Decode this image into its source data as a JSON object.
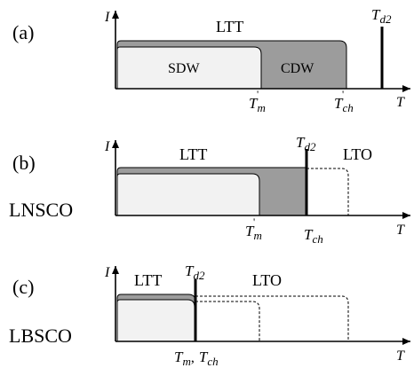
{
  "panels": [
    {
      "label": "(a)",
      "sample": "",
      "axis_y": "I",
      "axis_x": "T",
      "top_phase": "LTT",
      "inner_left": "SDW",
      "inner_right": "CDW",
      "right_phase": "",
      "td2": {
        "main": "T",
        "sub": "d2"
      },
      "ticks": [
        {
          "main": "T",
          "sub": "m",
          "prime": true
        },
        {
          "main": "T",
          "sub": "ch",
          "prime": true
        }
      ]
    },
    {
      "label": "(b)",
      "sample": "LNSCO",
      "axis_y": "I",
      "axis_x": "T",
      "top_phase": "LTT",
      "right_phase": "LTO",
      "td2": {
        "main": "T",
        "sub": "d2"
      },
      "ticks": [
        {
          "main": "T",
          "sub": "m",
          "prime": true
        },
        {
          "main": "T",
          "sub": "ch",
          "prime": false
        }
      ]
    },
    {
      "label": "(c)",
      "sample": "LBSCO",
      "axis_y": "I",
      "axis_x": "T",
      "top_phase": "LTT",
      "right_phase": "LTO",
      "td2": {
        "main": "T",
        "sub": "d2"
      },
      "ticks": [
        {
          "main": "T",
          "sub": "m",
          "prime": false
        },
        {
          "main": "T",
          "sub": "ch",
          "prime": false
        }
      ],
      "tick_separator": ","
    }
  ],
  "colors": {
    "light_fill": "#f2f2f2",
    "dark_fill": "#9c9c9c",
    "line": "#000000"
  }
}
